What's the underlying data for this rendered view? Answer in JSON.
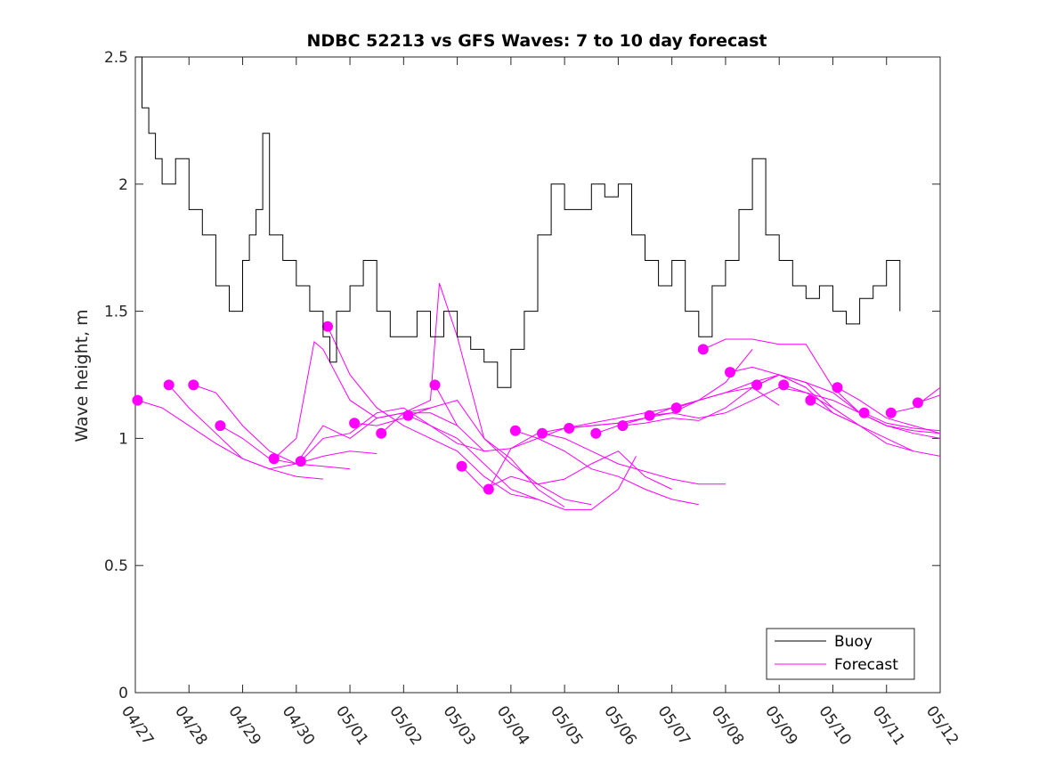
{
  "colors": {
    "buoy": "#000000",
    "forecast": "#ff00ff",
    "axis": "#262626",
    "background": "#ffffff"
  },
  "chart_data": {
    "type": "line",
    "title": "NDBC 52213 vs GFS Waves: 7 to 10 day forecast",
    "ylabel": "Wave height, m",
    "xlabel": "",
    "xlim": [
      "04/27 00:00",
      "05/12 00:00"
    ],
    "ylim": [
      0,
      2.5
    ],
    "xticks": [
      "04/27",
      "04/28",
      "04/29",
      "04/30",
      "05/01",
      "05/02",
      "05/03",
      "05/04",
      "05/05",
      "05/06",
      "05/07",
      "05/08",
      "05/09",
      "05/10",
      "05/11",
      "05/12"
    ],
    "yticks": [
      "0",
      "0.5",
      "1",
      "1.5",
      "2",
      "2.5"
    ],
    "grid": false,
    "legend": {
      "location": "bottom-right",
      "entries": [
        "Buoy",
        "Forecast"
      ]
    },
    "buoy": {
      "name": "Buoy",
      "x": [
        "04/27 00:00",
        "04/27 03:00",
        "04/27 06:00",
        "04/27 09:00",
        "04/27 12:00",
        "04/27 18:00",
        "04/28 00:00",
        "04/28 06:00",
        "04/28 12:00",
        "04/28 18:00",
        "04/29 00:00",
        "04/29 03:00",
        "04/29 06:00",
        "04/29 09:00",
        "04/29 12:00",
        "04/29 18:00",
        "04/30 00:00",
        "04/30 06:00",
        "04/30 12:00",
        "04/30 15:00",
        "04/30 18:00",
        "05/01 00:00",
        "05/01 06:00",
        "05/01 12:00",
        "05/01 18:00",
        "05/02 00:00",
        "05/02 06:00",
        "05/02 12:00",
        "05/02 18:00",
        "05/03 00:00",
        "05/03 06:00",
        "05/03 12:00",
        "05/03 18:00",
        "05/04 00:00",
        "05/04 06:00",
        "05/04 12:00",
        "05/04 18:00",
        "05/05 00:00",
        "05/05 06:00",
        "05/05 12:00",
        "05/05 18:00",
        "05/06 00:00",
        "05/06 06:00",
        "05/06 12:00",
        "05/06 18:00",
        "05/07 00:00",
        "05/07 06:00",
        "05/07 12:00",
        "05/07 18:00",
        "05/08 00:00",
        "05/08 06:00",
        "05/08 12:00",
        "05/08 18:00",
        "05/09 00:00",
        "05/09 06:00",
        "05/09 12:00",
        "05/09 18:00",
        "05/10 00:00",
        "05/10 06:00",
        "05/10 12:00",
        "05/10 18:00",
        "05/11 00:00",
        "05/11 06:00"
      ],
      "y": [
        2.5,
        2.3,
        2.2,
        2.1,
        2.0,
        2.1,
        1.9,
        1.8,
        1.6,
        1.5,
        1.7,
        1.8,
        1.9,
        2.2,
        1.8,
        1.7,
        1.6,
        1.5,
        1.4,
        1.3,
        1.5,
        1.6,
        1.7,
        1.5,
        1.4,
        1.4,
        1.5,
        1.4,
        1.5,
        1.4,
        1.35,
        1.3,
        1.2,
        1.35,
        1.5,
        1.8,
        2.0,
        1.9,
        1.9,
        2.0,
        1.95,
        2.0,
        1.8,
        1.7,
        1.6,
        1.7,
        1.5,
        1.4,
        1.6,
        1.7,
        1.9,
        2.1,
        1.8,
        1.7,
        1.6,
        1.55,
        1.6,
        1.5,
        1.45,
        1.55,
        1.6,
        1.7,
        1.5
      ]
    },
    "forecast": {
      "name": "Forecast",
      "markers": {
        "x": [
          "04/27 01:00",
          "04/27 15:00",
          "04/28 02:00",
          "04/28 14:00",
          "04/29 14:00",
          "04/30 02:00",
          "04/30 14:00",
          "05/01 02:00",
          "05/01 14:00",
          "05/02 02:00",
          "05/02 14:00",
          "05/03 02:00",
          "05/03 14:00",
          "05/04 02:00",
          "05/04 14:00",
          "05/05 02:00",
          "05/05 14:00",
          "05/06 02:00",
          "05/06 14:00",
          "05/07 02:00",
          "05/07 14:00",
          "05/08 02:00",
          "05/08 14:00",
          "05/09 02:00",
          "05/09 14:00",
          "05/10 02:00",
          "05/10 14:00",
          "05/11 02:00",
          "05/11 14:00"
        ],
        "y": [
          1.15,
          1.21,
          1.21,
          1.05,
          0.92,
          0.91,
          1.44,
          1.06,
          1.02,
          1.09,
          1.21,
          0.89,
          0.8,
          1.03,
          1.02,
          1.04,
          1.02,
          1.05,
          1.09,
          1.12,
          1.35,
          1.26,
          1.21,
          1.21,
          1.15,
          1.2,
          1.1,
          1.1,
          1.14
        ]
      },
      "lines": [
        {
          "x": [
            "04/27 01:00",
            "04/27 12:00",
            "04/28 00:00",
            "04/28 12:00",
            "04/29 00:00",
            "04/29 12:00",
            "04/30 00:00",
            "04/30 12:00"
          ],
          "y": [
            1.15,
            1.12,
            1.05,
            0.98,
            0.92,
            0.88,
            0.85,
            0.84
          ]
        },
        {
          "x": [
            "04/27 15:00",
            "04/28 00:00",
            "04/28 12:00",
            "04/29 00:00",
            "04/29 12:00",
            "04/30 00:00",
            "04/30 12:00",
            "05/01 00:00",
            "05/01 12:00"
          ],
          "y": [
            1.21,
            1.12,
            1.02,
            0.92,
            0.88,
            0.9,
            0.93,
            0.95,
            0.94
          ]
        },
        {
          "x": [
            "04/28 02:00",
            "04/28 12:00",
            "04/29 00:00",
            "04/29 12:00",
            "04/30 00:00",
            "04/30 12:00",
            "05/01 00:00"
          ],
          "y": [
            1.21,
            1.18,
            1.05,
            0.95,
            0.9,
            0.89,
            0.88
          ]
        },
        {
          "x": [
            "04/28 14:00",
            "04/29 00:00",
            "04/29 12:00",
            "04/30 00:00",
            "04/30 12:00",
            "05/01 00:00",
            "05/01 12:00",
            "05/02 00:00",
            "05/02 12:00"
          ],
          "y": [
            1.05,
            1.0,
            0.92,
            0.9,
            1.05,
            1.0,
            1.08,
            1.1,
            1.12
          ]
        },
        {
          "x": [
            "04/29 14:00",
            "04/30 00:00",
            "04/30 08:00",
            "04/30 12:00",
            "05/01 00:00",
            "05/01 12:00",
            "05/02 00:00",
            "05/02 12:00",
            "05/03 00:00"
          ],
          "y": [
            0.92,
            1.0,
            1.38,
            1.35,
            1.15,
            1.08,
            1.1,
            1.1,
            1.05
          ]
        },
        {
          "x": [
            "04/30 02:00",
            "04/30 12:00",
            "05/01 00:00",
            "05/01 12:00",
            "05/02 00:00",
            "05/02 12:00",
            "05/03 00:00",
            "05/03 12:00"
          ],
          "y": [
            0.91,
            1.0,
            1.02,
            1.1,
            1.12,
            1.05,
            0.98,
            0.95
          ]
        },
        {
          "x": [
            "04/30 14:00",
            "05/01 00:00",
            "05/01 12:00",
            "05/02 00:00",
            "05/02 12:00",
            "05/03 00:00",
            "05/03 12:00",
            "05/04 00:00",
            "05/04 12:00"
          ],
          "y": [
            1.44,
            1.25,
            1.12,
            1.05,
            1.0,
            0.95,
            0.85,
            0.78,
            0.76
          ]
        },
        {
          "x": [
            "05/01 02:00",
            "05/01 12:00",
            "05/02 00:00",
            "05/02 12:00",
            "05/03 00:00",
            "05/03 12:00",
            "05/04 00:00",
            "05/04 12:00",
            "05/05 00:00"
          ],
          "y": [
            1.06,
            1.05,
            1.08,
            1.12,
            1.15,
            1.0,
            0.92,
            0.8,
            0.73
          ]
        },
        {
          "x": [
            "05/01 14:00",
            "05/02 00:00",
            "05/02 12:00",
            "05/02 16:00",
            "05/03 00:00",
            "05/03 12:00",
            "05/04 00:00",
            "05/04 12:00",
            "05/05 00:00",
            "05/05 12:00"
          ],
          "y": [
            1.02,
            1.1,
            1.15,
            1.61,
            1.4,
            1.0,
            0.9,
            0.82,
            0.76,
            0.74
          ]
        },
        {
          "x": [
            "05/02 02:00",
            "05/02 12:00",
            "05/03 00:00",
            "05/03 12:00",
            "05/04 00:00",
            "05/04 12:00",
            "05/05 00:00",
            "05/05 12:00",
            "05/06 00:00",
            "05/06 08:00"
          ],
          "y": [
            1.09,
            1.05,
            1.0,
            0.9,
            0.8,
            0.76,
            0.72,
            0.72,
            0.8,
            0.93
          ]
        },
        {
          "x": [
            "05/02 14:00",
            "05/03 00:00",
            "05/03 12:00",
            "05/04 00:00",
            "05/04 12:00",
            "05/05 00:00",
            "05/05 12:00",
            "05/06 00:00",
            "05/06 12:00"
          ],
          "y": [
            1.21,
            1.05,
            0.95,
            0.96,
            1.0,
            1.04,
            1.05,
            1.06,
            1.08
          ]
        },
        {
          "x": [
            "05/03 02:00",
            "05/03 12:00",
            "05/04 00:00",
            "05/04 12:00",
            "05/05 00:00",
            "05/05 12:00",
            "05/06 00:00",
            "05/06 12:00",
            "05/07 00:00"
          ],
          "y": [
            0.89,
            0.8,
            0.85,
            0.82,
            0.84,
            0.9,
            0.95,
            0.85,
            0.8
          ]
        },
        {
          "x": [
            "05/03 14:00",
            "05/04 00:00",
            "05/04 12:00",
            "05/05 00:00",
            "05/05 12:00",
            "05/06 00:00",
            "05/06 12:00",
            "05/07 00:00"
          ],
          "y": [
            0.8,
            0.96,
            1.02,
            1.04,
            1.06,
            1.08,
            1.1,
            1.12
          ]
        },
        {
          "x": [
            "05/04 02:00",
            "05/04 12:00",
            "05/05 00:00",
            "05/05 12:00",
            "05/06 00:00",
            "05/06 12:00",
            "05/07 00:00",
            "05/07 12:00"
          ],
          "y": [
            1.03,
            1.0,
            0.95,
            0.88,
            0.85,
            0.8,
            0.76,
            0.74
          ]
        },
        {
          "x": [
            "05/04 14:00",
            "05/05 00:00",
            "05/05 12:00",
            "05/06 00:00",
            "05/06 12:00",
            "05/07 00:00",
            "05/07 12:00",
            "05/08 00:00"
          ],
          "y": [
            1.02,
            1.0,
            0.95,
            0.9,
            0.87,
            0.84,
            0.82,
            0.82
          ]
        },
        {
          "x": [
            "05/05 02:00",
            "05/05 12:00",
            "05/06 00:00",
            "05/06 12:00",
            "05/07 00:00",
            "05/07 12:00",
            "05/08 00:00",
            "05/08 12:00"
          ],
          "y": [
            1.04,
            1.05,
            1.06,
            1.08,
            1.1,
            1.15,
            1.22,
            1.35
          ]
        },
        {
          "x": [
            "05/05 14:00",
            "05/06 00:00",
            "05/06 12:00",
            "05/07 00:00",
            "05/07 12:00",
            "05/08 00:00",
            "05/08 12:00",
            "05/09 00:00"
          ],
          "y": [
            1.02,
            1.05,
            1.08,
            1.12,
            1.15,
            1.18,
            1.2,
            1.13
          ]
        },
        {
          "x": [
            "05/06 02:00",
            "05/06 12:00",
            "05/07 00:00",
            "05/07 12:00",
            "05/08 00:00",
            "05/08 12:00",
            "05/09 00:00",
            "05/09 12:00"
          ],
          "y": [
            1.05,
            1.06,
            1.08,
            1.07,
            1.12,
            1.2,
            1.25,
            1.2
          ]
        },
        {
          "x": [
            "05/06 14:00",
            "05/07 00:00",
            "05/07 12:00",
            "05/08 00:00",
            "05/08 12:00",
            "05/09 00:00",
            "05/09 12:00",
            "05/10 00:00"
          ],
          "y": [
            1.09,
            1.1,
            1.08,
            1.1,
            1.15,
            1.2,
            1.18,
            1.12
          ]
        },
        {
          "x": [
            "05/07 02:00",
            "05/07 12:00",
            "05/08 00:00",
            "05/08 12:00",
            "05/09 00:00",
            "05/09 12:00",
            "05/10 00:00",
            "05/10 12:00"
          ],
          "y": [
            1.12,
            1.15,
            1.18,
            1.22,
            1.25,
            1.2,
            1.1,
            1.05
          ]
        },
        {
          "x": [
            "05/07 14:00",
            "05/08 00:00",
            "05/08 12:00",
            "05/09 00:00",
            "05/09 12:00",
            "05/10 00:00",
            "05/10 12:00",
            "05/11 00:00"
          ],
          "y": [
            1.35,
            1.39,
            1.39,
            1.37,
            1.37,
            1.2,
            1.1,
            1.05
          ]
        },
        {
          "x": [
            "05/08 02:00",
            "05/08 12:00",
            "05/09 00:00",
            "05/09 12:00",
            "05/10 00:00",
            "05/10 12:00",
            "05/11 00:00",
            "05/11 12:00"
          ],
          "y": [
            1.26,
            1.28,
            1.25,
            1.22,
            1.12,
            1.05,
            0.98,
            0.95
          ]
        },
        {
          "x": [
            "05/08 14:00",
            "05/09 00:00",
            "05/09 12:00",
            "05/10 00:00",
            "05/10 12:00",
            "05/11 00:00",
            "05/11 12:00",
            "05/12 00:00"
          ],
          "y": [
            1.21,
            1.25,
            1.22,
            1.18,
            1.1,
            1.05,
            1.02,
            1.0
          ]
        },
        {
          "x": [
            "05/09 02:00",
            "05/09 12:00",
            "05/10 00:00",
            "05/10 12:00",
            "05/11 00:00",
            "05/11 12:00",
            "05/12 00:00"
          ],
          "y": [
            1.21,
            1.18,
            1.15,
            1.1,
            1.05,
            1.03,
            1.02
          ]
        },
        {
          "x": [
            "05/09 14:00",
            "05/10 00:00",
            "05/10 12:00",
            "05/11 00:00",
            "05/11 12:00",
            "05/12 00:00"
          ],
          "y": [
            1.15,
            1.1,
            1.05,
            1.0,
            0.95,
            0.93
          ]
        },
        {
          "x": [
            "05/10 02:00",
            "05/10 12:00",
            "05/11 00:00",
            "05/11 12:00",
            "05/12 00:00"
          ],
          "y": [
            1.2,
            1.15,
            1.08,
            1.05,
            1.02
          ]
        },
        {
          "x": [
            "05/10 14:00",
            "05/11 00:00",
            "05/11 12:00",
            "05/12 00:00"
          ],
          "y": [
            1.1,
            1.06,
            1.04,
            1.03
          ]
        },
        {
          "x": [
            "05/11 02:00",
            "05/11 12:00",
            "05/12 00:00"
          ],
          "y": [
            1.1,
            1.12,
            1.2
          ]
        },
        {
          "x": [
            "05/11 14:00",
            "05/12 00:00"
          ],
          "y": [
            1.14,
            1.17
          ]
        }
      ]
    }
  }
}
